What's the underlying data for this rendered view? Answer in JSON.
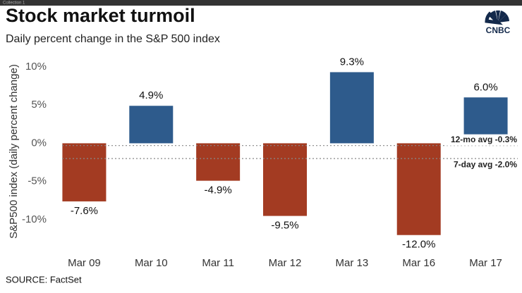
{
  "collection": "Collection 1",
  "logo": "CNBC",
  "chart_data": {
    "type": "bar",
    "title": "Stock market turmoil",
    "subtitle": "Daily percent change in the S&P 500 index",
    "y_label": "S&P500 index (daily percent change)",
    "source": "SOURCE: FactSet",
    "categories": [
      "Mar 09",
      "Mar 10",
      "Mar 11",
      "Mar 12",
      "Mar 13",
      "Mar 16",
      "Mar 17"
    ],
    "values": [
      -7.6,
      4.9,
      -4.9,
      -9.5,
      9.3,
      -12.0,
      6.0
    ],
    "value_labels": [
      "-7.6%",
      "4.9%",
      "-4.9%",
      "-9.5%",
      "9.3%",
      "-12.0%",
      "6.0%"
    ],
    "positive_color": "#2e5b8c",
    "negative_color": "#a33b22",
    "ylim": [
      -13.5,
      11
    ],
    "yticks": [
      {
        "value": 10,
        "label": "10%"
      },
      {
        "value": 5,
        "label": "5%"
      },
      {
        "value": 0,
        "label": "0%"
      },
      {
        "value": -5,
        "label": "-5%"
      },
      {
        "value": -10,
        "label": "-10%"
      }
    ],
    "grid": false,
    "reference_lines": [
      {
        "label": "12-mo avg -0.3%",
        "value": -0.3
      },
      {
        "label": "7-day avg -2.0%",
        "value": -2.0
      }
    ]
  }
}
